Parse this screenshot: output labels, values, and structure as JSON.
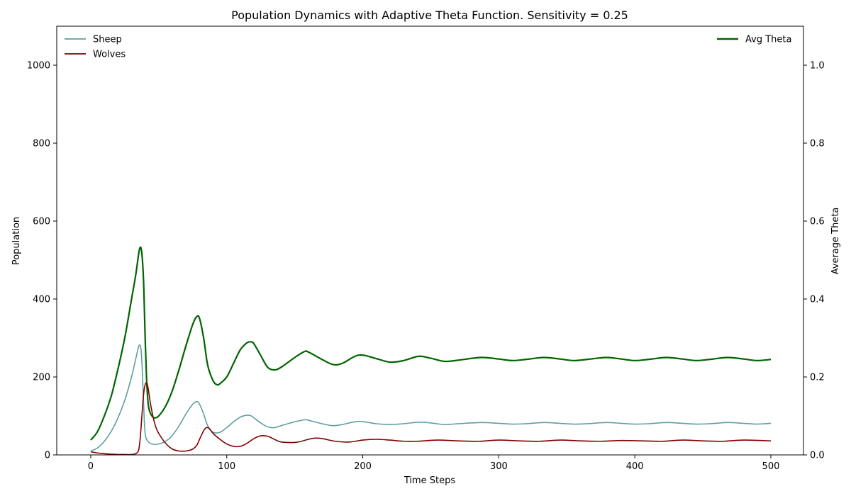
{
  "chart_data": {
    "type": "line",
    "title": "Population Dynamics with Adaptive Theta Function. Sensitivity = 0.25",
    "xlabel": "Time Steps",
    "ylabel": "Population",
    "y2label": "Average Theta",
    "xlim": [
      -25,
      524
    ],
    "ylim": [
      0,
      1100
    ],
    "y2lim": [
      0,
      1.1
    ],
    "xticks": [
      0,
      100,
      200,
      300,
      400,
      500
    ],
    "yticks": [
      0,
      200,
      400,
      600,
      800,
      1000
    ],
    "y2ticks": [
      0.0,
      0.2,
      0.4,
      0.6,
      0.8,
      1.0
    ],
    "grid": false,
    "legend_left": "top-left",
    "legend_right": "top-right",
    "series": [
      {
        "name": "Sheep",
        "axis": "left",
        "color": "#5f9ea0",
        "x": [
          0,
          5,
          10,
          15,
          20,
          25,
          30,
          33,
          35,
          36,
          37,
          38,
          39,
          40,
          42,
          45,
          50,
          55,
          60,
          65,
          70,
          75,
          78,
          80,
          83,
          86,
          90,
          95,
          100,
          105,
          110,
          115,
          118,
          120,
          125,
          130,
          135,
          140,
          150,
          157,
          160,
          170,
          178,
          185,
          197,
          210,
          220,
          230,
          241,
          250,
          260,
          270,
          287,
          300,
          310,
          320,
          333,
          345,
          355,
          365,
          379,
          390,
          400,
          410,
          423,
          435,
          445,
          455,
          468,
          480,
          490,
          500
        ],
        "y": [
          10,
          18,
          35,
          60,
          95,
          140,
          200,
          245,
          275,
          282,
          270,
          210,
          120,
          55,
          35,
          28,
          28,
          35,
          50,
          75,
          105,
          130,
          137,
          130,
          105,
          75,
          58,
          58,
          70,
          85,
          97,
          102,
          100,
          95,
          82,
          72,
          70,
          75,
          85,
          90,
          89,
          80,
          75,
          78,
          86,
          80,
          78,
          80,
          84,
          82,
          78,
          80,
          83,
          81,
          79,
          80,
          83,
          81,
          79,
          80,
          83,
          81,
          79,
          80,
          83,
          81,
          79,
          80,
          83,
          81,
          79,
          81
        ]
      },
      {
        "name": "Wolves",
        "axis": "left",
        "color": "#800000",
        "x": [
          0,
          5,
          10,
          15,
          20,
          25,
          30,
          33,
          35,
          36,
          37,
          38,
          39,
          40,
          41,
          42,
          44,
          46,
          48,
          50,
          55,
          60,
          65,
          70,
          75,
          78,
          80,
          83,
          85,
          87,
          90,
          95,
          100,
          105,
          110,
          115,
          120,
          125,
          130,
          135,
          140,
          150,
          155,
          160,
          165,
          170,
          180,
          190,
          200,
          210,
          220,
          230,
          240,
          255,
          270,
          285,
          300,
          315,
          330,
          345,
          360,
          375,
          390,
          405,
          420,
          435,
          450,
          465,
          480,
          500
        ],
        "y": [
          8,
          5,
          3,
          2,
          1,
          1,
          1,
          3,
          10,
          30,
          70,
          120,
          160,
          180,
          185,
          175,
          130,
          95,
          70,
          55,
          30,
          15,
          10,
          10,
          15,
          25,
          40,
          62,
          70,
          68,
          55,
          40,
          28,
          22,
          22,
          30,
          42,
          49,
          48,
          40,
          33,
          32,
          35,
          40,
          43,
          42,
          35,
          33,
          38,
          40,
          38,
          35,
          35,
          38,
          36,
          35,
          38,
          36,
          35,
          38,
          36,
          35,
          37,
          36,
          35,
          38,
          36,
          35,
          38,
          36
        ]
      },
      {
        "name": "Avg Theta",
        "axis": "right",
        "color": "#006400",
        "x": [
          0,
          5,
          10,
          15,
          20,
          25,
          30,
          33,
          35,
          36,
          37,
          38,
          39,
          40,
          41,
          42,
          43,
          45,
          47,
          50,
          55,
          60,
          65,
          70,
          75,
          78,
          80,
          83,
          86,
          90,
          93,
          95,
          100,
          105,
          110,
          115,
          118,
          120,
          125,
          130,
          135,
          140,
          150,
          157,
          160,
          170,
          178,
          185,
          197,
          210,
          220,
          230,
          241,
          250,
          260,
          270,
          287,
          300,
          310,
          320,
          333,
          345,
          355,
          365,
          379,
          390,
          400,
          410,
          423,
          435,
          445,
          455,
          468,
          480,
          490,
          500
        ],
        "y": [
          0.038,
          0.06,
          0.1,
          0.15,
          0.22,
          0.3,
          0.4,
          0.46,
          0.51,
          0.53,
          0.53,
          0.5,
          0.43,
          0.3,
          0.2,
          0.14,
          0.115,
          0.1,
          0.095,
          0.1,
          0.125,
          0.165,
          0.22,
          0.28,
          0.335,
          0.355,
          0.35,
          0.3,
          0.23,
          0.19,
          0.18,
          0.183,
          0.2,
          0.235,
          0.27,
          0.288,
          0.29,
          0.285,
          0.255,
          0.225,
          0.218,
          0.225,
          0.25,
          0.265,
          0.264,
          0.245,
          0.232,
          0.235,
          0.256,
          0.247,
          0.238,
          0.242,
          0.253,
          0.248,
          0.24,
          0.243,
          0.25,
          0.246,
          0.242,
          0.245,
          0.25,
          0.246,
          0.242,
          0.245,
          0.25,
          0.246,
          0.242,
          0.245,
          0.25,
          0.246,
          0.242,
          0.245,
          0.25,
          0.246,
          0.242,
          0.245
        ]
      }
    ]
  }
}
